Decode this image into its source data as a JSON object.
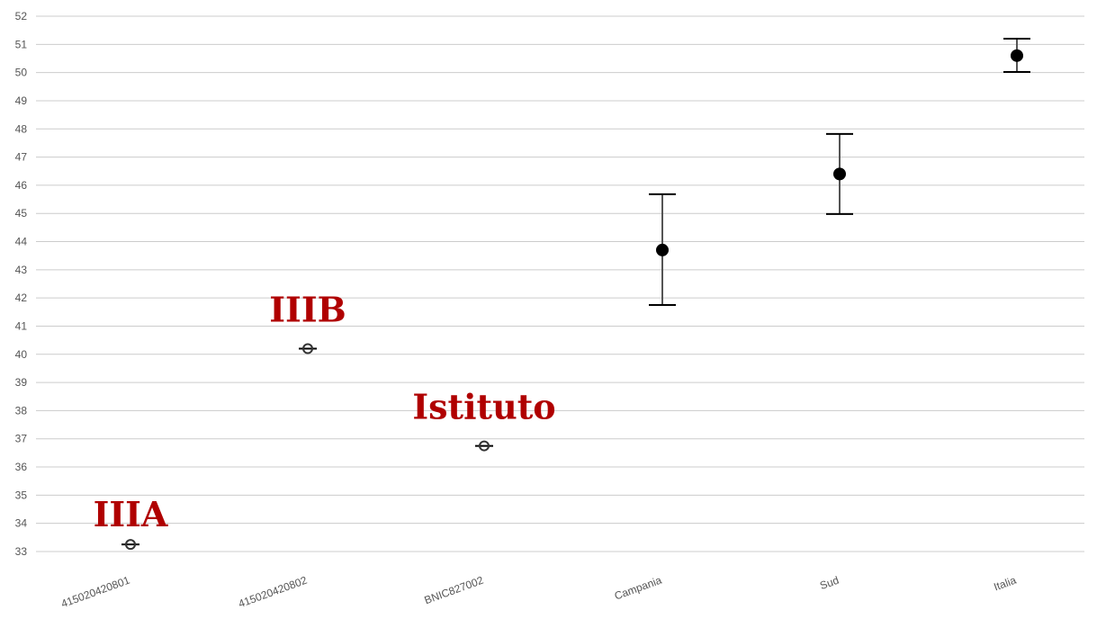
{
  "chart_data": {
    "type": "scatter",
    "categories": [
      "415020420801",
      "415020420802",
      "BNIC827002",
      "Campania",
      "Sud",
      "Italia"
    ],
    "values": [
      33.25,
      40.2,
      36.75,
      43.7,
      46.4,
      50.6
    ],
    "error_low": [
      33.25,
      40.2,
      36.75,
      41.75,
      44.98,
      50.02
    ],
    "error_high": [
      33.25,
      40.2,
      36.75,
      45.68,
      47.82,
      51.2
    ],
    "marker_style": [
      "open",
      "open",
      "open",
      "filled",
      "filled",
      "filled"
    ],
    "ylim": [
      33,
      52
    ],
    "yticks": [
      "33",
      "34",
      "35",
      "36",
      "37",
      "38",
      "39",
      "40",
      "41",
      "42",
      "43",
      "44",
      "45",
      "46",
      "47",
      "48",
      "49",
      "50",
      "51",
      "52"
    ],
    "grid": true,
    "annotations": [
      {
        "text": "IIIA",
        "category": "415020420801"
      },
      {
        "text": "IIIB",
        "category": "415020420802"
      },
      {
        "text": "Istituto",
        "category": "BNIC827002"
      }
    ],
    "colors": {
      "annotation": "#b00000",
      "grid": "#cccccc",
      "marker": "#000000",
      "error_bar": "#555555"
    }
  }
}
